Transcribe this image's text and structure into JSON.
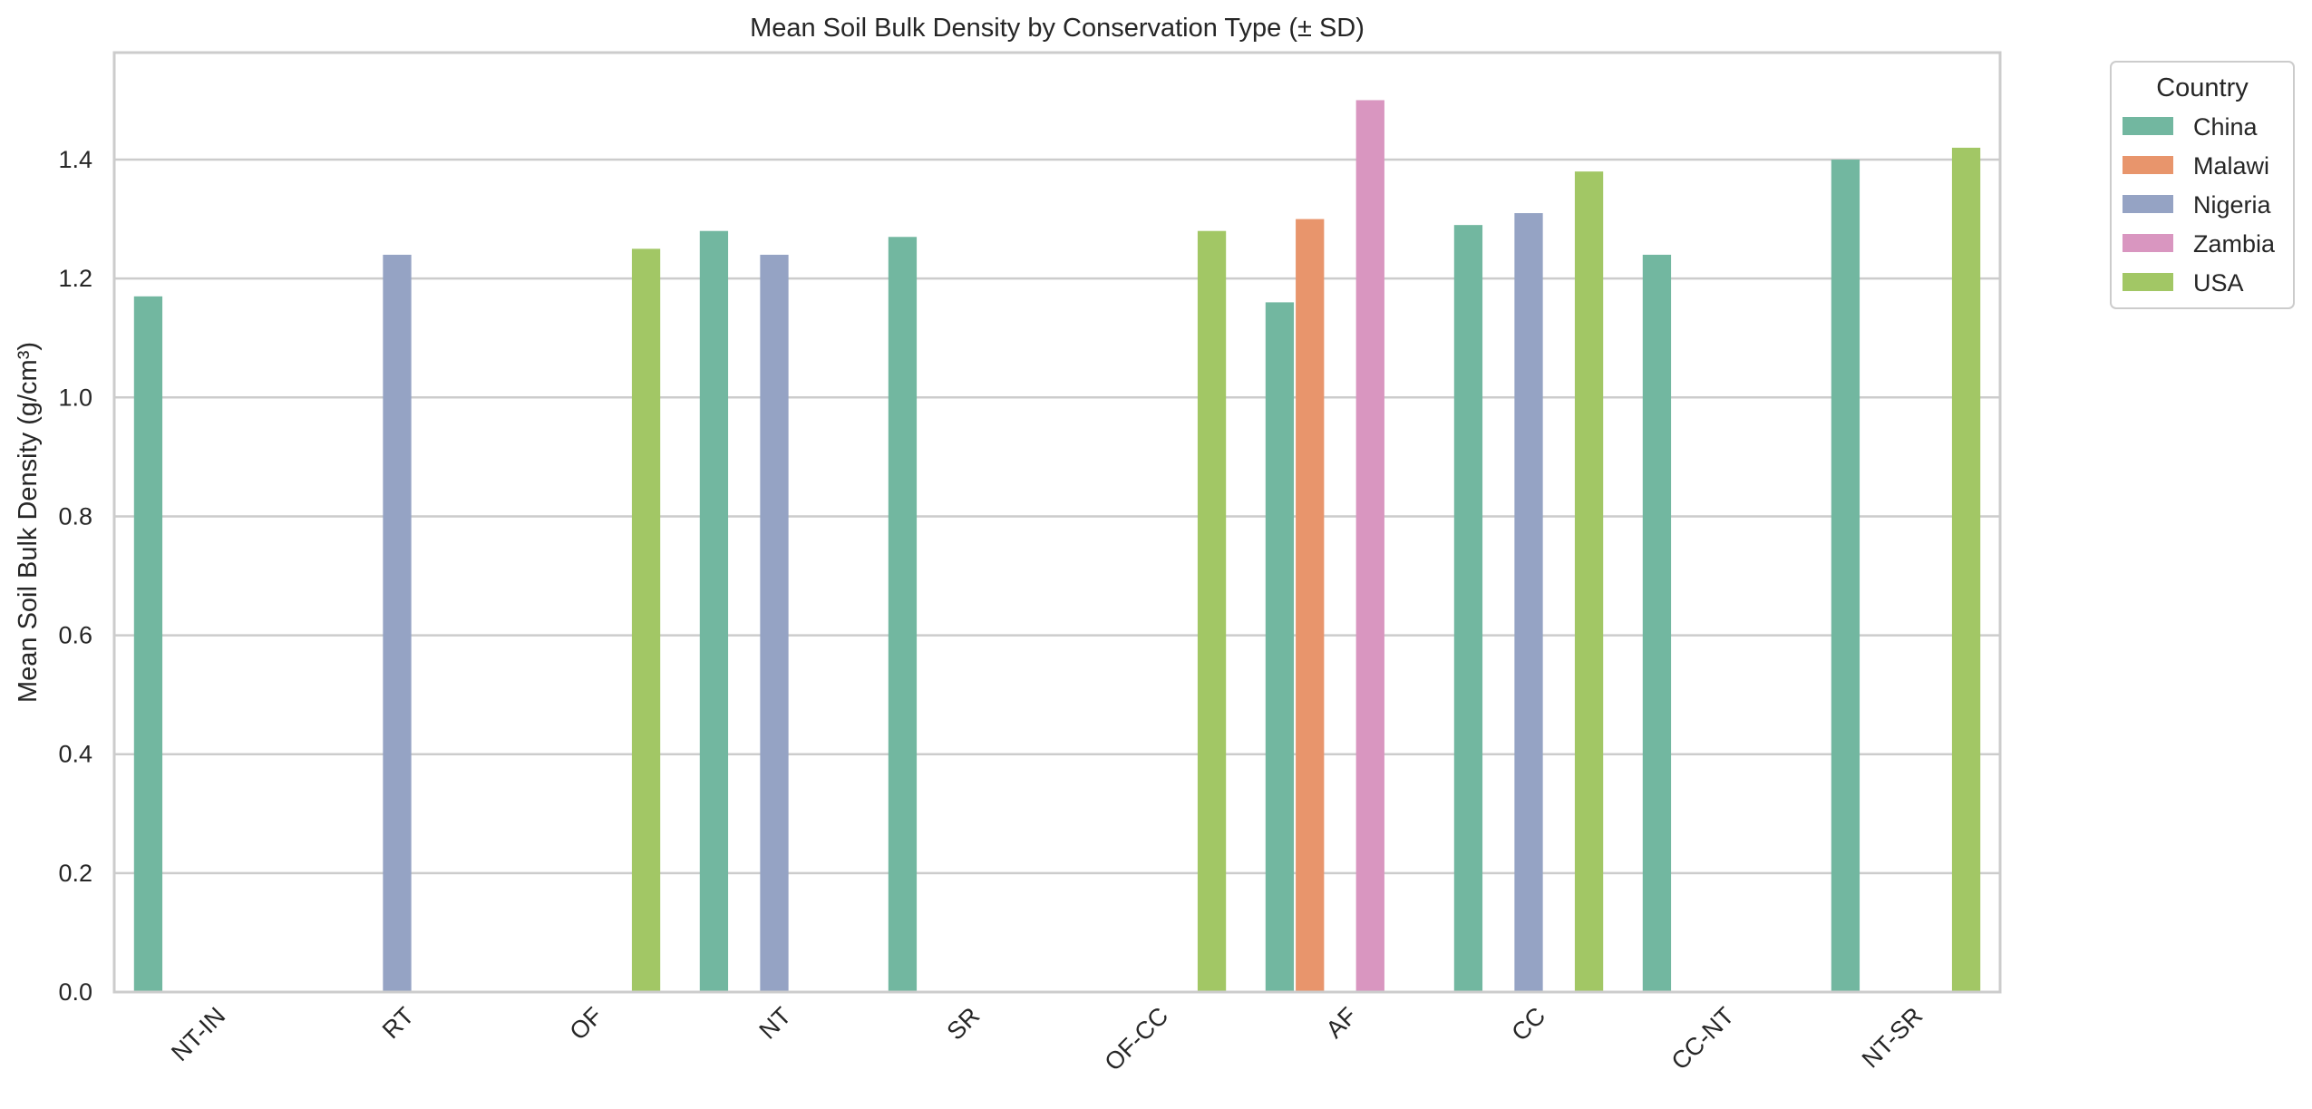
{
  "chart_data": {
    "type": "bar",
    "title": "Mean Soil Bulk Density by Conservation Type (± SD)",
    "xlabel": "",
    "ylabel": "Mean Soil Bulk Density (g/cm³)",
    "ylim": [
      0,
      1.58
    ],
    "yticks": [
      "0.0",
      "0.2",
      "0.4",
      "0.6",
      "0.8",
      "1.0",
      "1.2",
      "1.4"
    ],
    "grid": true,
    "legend_title": "Country",
    "legend_position": "outside-top-right",
    "categories": [
      "NT-IN",
      "RT",
      "OF",
      "NT",
      "SR",
      "OF-CC",
      "AF",
      "CC",
      "CC-NT",
      "NT-SR"
    ],
    "series": [
      {
        "name": "China",
        "color": "#72b7a0",
        "values": [
          1.17,
          null,
          null,
          1.28,
          1.27,
          null,
          1.16,
          1.29,
          1.24,
          1.4
        ]
      },
      {
        "name": "Malawi",
        "color": "#e8956c",
        "values": [
          null,
          null,
          null,
          null,
          null,
          null,
          1.3,
          null,
          null,
          null
        ]
      },
      {
        "name": "Nigeria",
        "color": "#95a3c4",
        "values": [
          null,
          1.24,
          null,
          1.24,
          null,
          null,
          null,
          1.31,
          null,
          null
        ]
      },
      {
        "name": "Zambia",
        "color": "#d996c0",
        "values": [
          null,
          null,
          null,
          null,
          null,
          null,
          1.5,
          null,
          null,
          null
        ]
      },
      {
        "name": "USA",
        "color": "#a2c765",
        "values": [
          null,
          null,
          1.25,
          null,
          null,
          1.28,
          null,
          1.38,
          null,
          1.42
        ]
      }
    ]
  }
}
